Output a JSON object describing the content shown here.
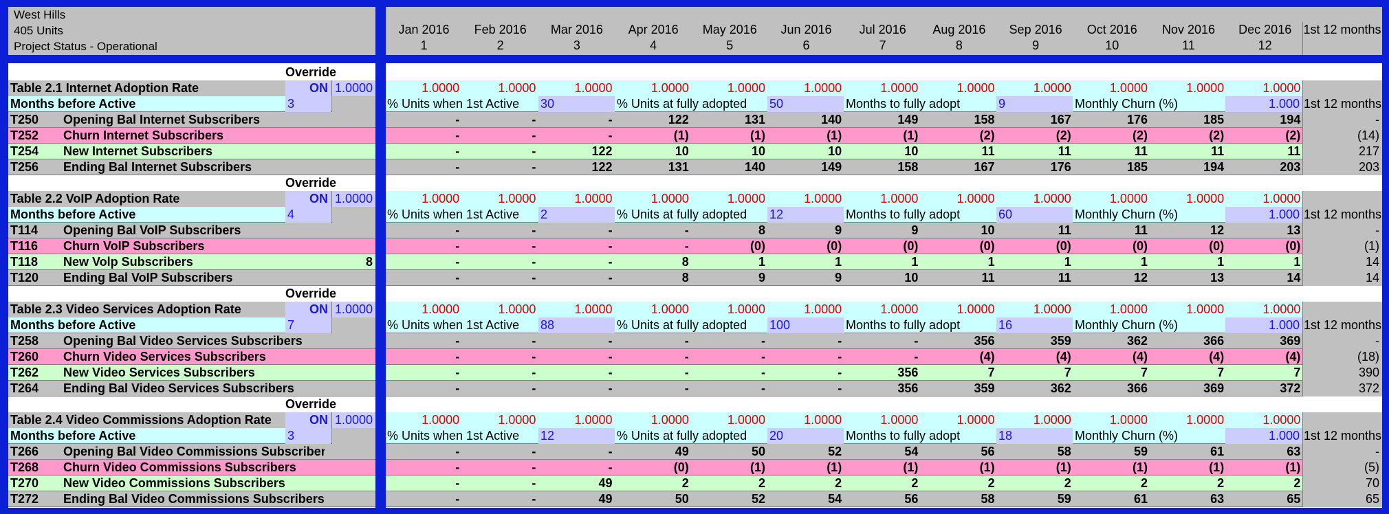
{
  "header": {
    "line1": "West Hills",
    "line2": "405 Units",
    "line3": "Project Status - Operational",
    "months": [
      {
        "label": "Jan 2016",
        "num": "1"
      },
      {
        "label": "Feb 2016",
        "num": "2"
      },
      {
        "label": "Mar 2016",
        "num": "3"
      },
      {
        "label": "Apr 2016",
        "num": "4"
      },
      {
        "label": "May 2016",
        "num": "5"
      },
      {
        "label": "Jun 2016",
        "num": "6"
      },
      {
        "label": "Jul 2016",
        "num": "7"
      },
      {
        "label": "Aug 2016",
        "num": "8"
      },
      {
        "label": "Sep 2016",
        "num": "9"
      },
      {
        "label": "Oct 2016",
        "num": "10"
      },
      {
        "label": "Nov 2016",
        "num": "11"
      },
      {
        "label": "Dec 2016",
        "num": "12"
      }
    ],
    "total_label": "1st 12 months"
  },
  "labels": {
    "override": "Override",
    "months_before_active": "Months before Active",
    "pct_units_first_active": "% Units when 1st Active",
    "pct_units_fully_adopted": "% Units at fully adopted",
    "months_to_fully_adopt": "Months to fully adopt",
    "monthly_churn": "Monthly Churn (%)",
    "first_12_months": "1st 12 months"
  },
  "tables": [
    {
      "title": "Table 2.1  Internet Adoption Rate",
      "override_state": "ON",
      "override_value": "1.0000",
      "rate_values": [
        "1.0000",
        "1.0000",
        "1.0000",
        "1.0000",
        "1.0000",
        "1.0000",
        "1.0000",
        "1.0000",
        "1.0000",
        "1.0000",
        "1.0000",
        "1.0000"
      ],
      "months_before_active": "3",
      "pct_first_active": "30",
      "pct_fully_adopted": "50",
      "months_to_adopt": "9",
      "monthly_churn": "1.000",
      "rows": [
        {
          "code": "T250",
          "label": "Opening Bal  Internet Subscribers",
          "left_value": "",
          "style": "gray",
          "values": [
            "-",
            "-",
            "-",
            "122",
            "131",
            "140",
            "149",
            "158",
            "167",
            "176",
            "185",
            "194"
          ],
          "total": "-"
        },
        {
          "code": "T252",
          "label": "Churn Internet Subscribers",
          "left_value": "",
          "style": "pink",
          "values": [
            "-",
            "-",
            "-",
            "(1)",
            "(1)",
            "(1)",
            "(1)",
            "(2)",
            "(2)",
            "(2)",
            "(2)",
            "(2)"
          ],
          "total": "(14)"
        },
        {
          "code": "T254",
          "label": "New Internet Subscribers",
          "left_value": "",
          "style": "green",
          "values": [
            "-",
            "-",
            "122",
            "10",
            "10",
            "10",
            "10",
            "11",
            "11",
            "11",
            "11",
            "11"
          ],
          "total": "217"
        },
        {
          "code": "T256",
          "label": "Ending Bal  Internet Subscribers",
          "left_value": "",
          "style": "gray",
          "values": [
            "-",
            "-",
            "122",
            "131",
            "140",
            "149",
            "158",
            "167",
            "176",
            "185",
            "194",
            "203"
          ],
          "total": "203"
        }
      ]
    },
    {
      "title": "Table 2.2  VoIP Adoption Rate",
      "override_state": "ON",
      "override_value": "1.0000",
      "rate_values": [
        "1.0000",
        "1.0000",
        "1.0000",
        "1.0000",
        "1.0000",
        "1.0000",
        "1.0000",
        "1.0000",
        "1.0000",
        "1.0000",
        "1.0000",
        "1.0000"
      ],
      "months_before_active": "4",
      "pct_first_active": "2",
      "pct_fully_adopted": "12",
      "months_to_adopt": "60",
      "monthly_churn": "1.000",
      "rows": [
        {
          "code": "T114",
          "label": "Opening Bal  VoIP Subscribers",
          "left_value": "",
          "style": "gray",
          "values": [
            "-",
            "-",
            "-",
            "-",
            "8",
            "9",
            "9",
            "10",
            "11",
            "11",
            "12",
            "13"
          ],
          "total": "-"
        },
        {
          "code": "T116",
          "label": "Churn VoIP Subscribers",
          "left_value": "",
          "style": "pink",
          "values": [
            "-",
            "-",
            "-",
            "-",
            "(0)",
            "(0)",
            "(0)",
            "(0)",
            "(0)",
            "(0)",
            "(0)",
            "(0)"
          ],
          "total": "(1)"
        },
        {
          "code": "T118",
          "label": "New Volp Subscribers",
          "left_value": "8",
          "style": "green",
          "values": [
            "-",
            "-",
            "-",
            "8",
            "1",
            "1",
            "1",
            "1",
            "1",
            "1",
            "1",
            "1"
          ],
          "total": "14"
        },
        {
          "code": "T120",
          "label": "Ending Bal  VoIP Subscribers",
          "left_value": "",
          "style": "gray",
          "values": [
            "-",
            "-",
            "-",
            "8",
            "9",
            "9",
            "10",
            "11",
            "11",
            "12",
            "13",
            "14"
          ],
          "total": "14"
        }
      ]
    },
    {
      "title": "Table 2.3  Video Services Adoption Rate",
      "override_state": "ON",
      "override_value": "1.0000",
      "rate_values": [
        "1.0000",
        "1.0000",
        "1.0000",
        "1.0000",
        "1.0000",
        "1.0000",
        "1.0000",
        "1.0000",
        "1.0000",
        "1.0000",
        "1.0000",
        "1.0000"
      ],
      "months_before_active": "7",
      "pct_first_active": "88",
      "pct_fully_adopted": "100",
      "months_to_adopt": "16",
      "monthly_churn": "1.000",
      "rows": [
        {
          "code": "T258",
          "label": "Opening Bal  Video Services Subscribers",
          "left_value": "",
          "style": "gray",
          "values": [
            "-",
            "-",
            "-",
            "-",
            "-",
            "-",
            "-",
            "356",
            "359",
            "362",
            "366",
            "369"
          ],
          "total": "-"
        },
        {
          "code": "T260",
          "label": "Churn Video Services Subscribers",
          "left_value": "",
          "style": "pink",
          "values": [
            "-",
            "-",
            "-",
            "-",
            "-",
            "-",
            "-",
            "(4)",
            "(4)",
            "(4)",
            "(4)",
            "(4)"
          ],
          "total": "(18)"
        },
        {
          "code": "T262",
          "label": "New Video Services Subscribers",
          "left_value": "",
          "style": "green",
          "values": [
            "-",
            "-",
            "-",
            "-",
            "-",
            "-",
            "356",
            "7",
            "7",
            "7",
            "7",
            "7"
          ],
          "total": "390"
        },
        {
          "code": "T264",
          "label": "Ending Bal  Video Services Subscribers",
          "left_value": "",
          "style": "gray",
          "values": [
            "-",
            "-",
            "-",
            "-",
            "-",
            "-",
            "356",
            "359",
            "362",
            "366",
            "369",
            "372"
          ],
          "total": "372"
        }
      ]
    },
    {
      "title": "Table 2.4  Video Commissions Adoption Rate",
      "override_state": "ON",
      "override_value": "1.0000",
      "rate_values": [
        "1.0000",
        "1.0000",
        "1.0000",
        "1.0000",
        "1.0000",
        "1.0000",
        "1.0000",
        "1.0000",
        "1.0000",
        "1.0000",
        "1.0000",
        "1.0000"
      ],
      "months_before_active": "3",
      "pct_first_active": "12",
      "pct_fully_adopted": "20",
      "months_to_adopt": "18",
      "monthly_churn": "1.000",
      "rows": [
        {
          "code": "T266",
          "label": "Opening Bal  Video Commissions Subscribers",
          "left_value": "",
          "style": "gray",
          "values": [
            "-",
            "-",
            "-",
            "49",
            "50",
            "52",
            "54",
            "56",
            "58",
            "59",
            "61",
            "63"
          ],
          "total": "-"
        },
        {
          "code": "T268",
          "label": "Churn Video Commissions Subscribers",
          "left_value": "",
          "style": "pink",
          "values": [
            "-",
            "-",
            "-",
            "(0)",
            "(1)",
            "(1)",
            "(1)",
            "(1)",
            "(1)",
            "(1)",
            "(1)",
            "(1)"
          ],
          "total": "(5)"
        },
        {
          "code": "T270",
          "label": "New Video Commissions Subscribers",
          "left_value": "",
          "style": "green",
          "values": [
            "-",
            "-",
            "49",
            "2",
            "2",
            "2",
            "2",
            "2",
            "2",
            "2",
            "2",
            "2"
          ],
          "total": "70"
        },
        {
          "code": "T272",
          "label": "Ending Bal  Video Commissions Subscribers",
          "left_value": "",
          "style": "gray",
          "values": [
            "-",
            "-",
            "49",
            "50",
            "52",
            "54",
            "56",
            "58",
            "59",
            "61",
            "63",
            "65"
          ],
          "total": "65"
        }
      ]
    }
  ]
}
